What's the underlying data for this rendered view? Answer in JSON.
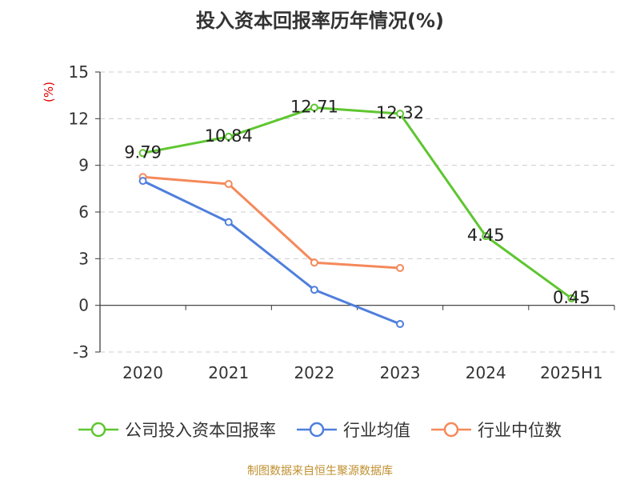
{
  "chart_data": {
    "type": "line",
    "title": "投入资本回报率历年情况(%)",
    "ylabel": "(%)",
    "categories": [
      "2020",
      "2021",
      "2022",
      "2023",
      "2024",
      "2025H1"
    ],
    "ylim": [
      -3,
      15
    ],
    "yticks": [
      "15",
      "12",
      "9",
      "6",
      "3",
      "0",
      "-3"
    ],
    "grid": true,
    "legend_position": "bottom",
    "series": [
      {
        "name": "公司投入资本回报率",
        "color": "#5ec630",
        "values": [
          9.79,
          10.84,
          12.71,
          12.32,
          4.45,
          0.45
        ],
        "labels": [
          "9.79",
          "10.84",
          "12.71",
          "12.32",
          "4.45",
          "0.45"
        ]
      },
      {
        "name": "行业均值",
        "color": "#4f7fdc",
        "values": [
          8.0,
          5.35,
          1.0,
          -1.2,
          null,
          null
        ]
      },
      {
        "name": "行业中位数",
        "color": "#f5895a",
        "values": [
          8.25,
          7.8,
          2.75,
          2.4,
          null,
          null
        ]
      }
    ]
  },
  "source": "制图数据来自恒生聚源数据库"
}
